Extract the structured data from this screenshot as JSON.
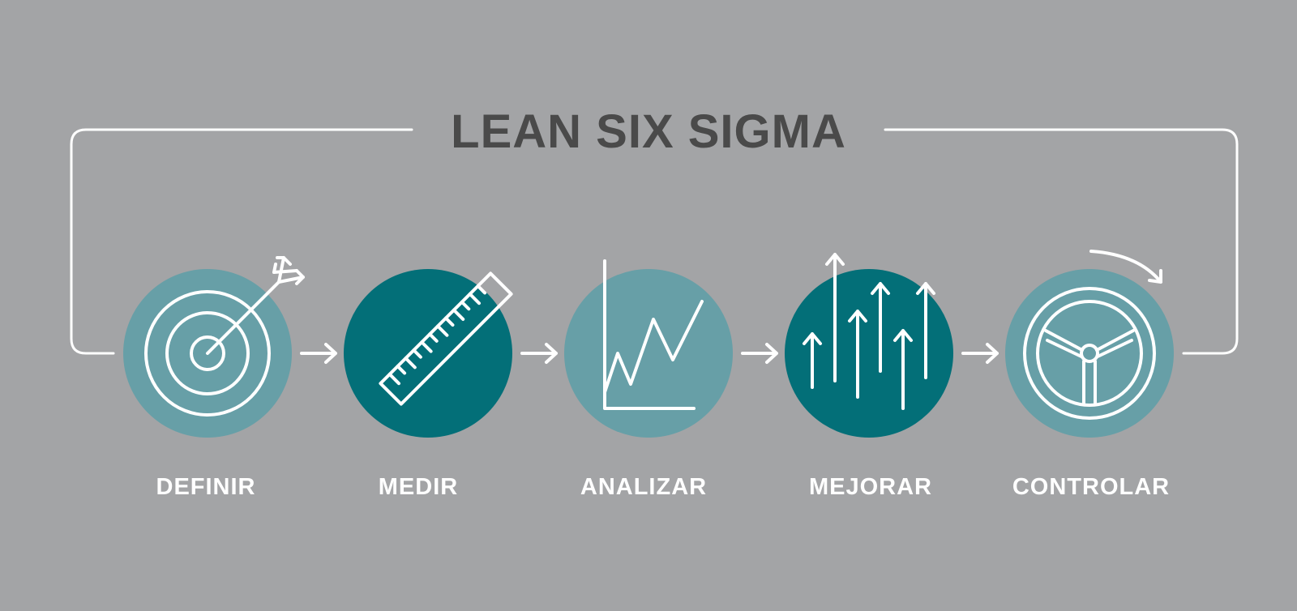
{
  "title": "LEAN SIX SIGMA",
  "colors": {
    "background": "#a3a4a6",
    "title": "#4a4a4a",
    "line": "#ffffff",
    "circle_light": "#679fa7",
    "circle_dark": "#036f78",
    "label": "#ffffff"
  },
  "steps": [
    {
      "label": "DEFINIR",
      "icon": "target-arrow-icon",
      "tone": "light"
    },
    {
      "label": "MEDIR",
      "icon": "ruler-icon",
      "tone": "dark"
    },
    {
      "label": "ANALIZAR",
      "icon": "line-chart-icon",
      "tone": "light"
    },
    {
      "label": "MEJORAR",
      "icon": "up-arrows-icon",
      "tone": "dark"
    },
    {
      "label": "CONTROLAR",
      "icon": "steering-wheel-icon",
      "tone": "light"
    }
  ]
}
